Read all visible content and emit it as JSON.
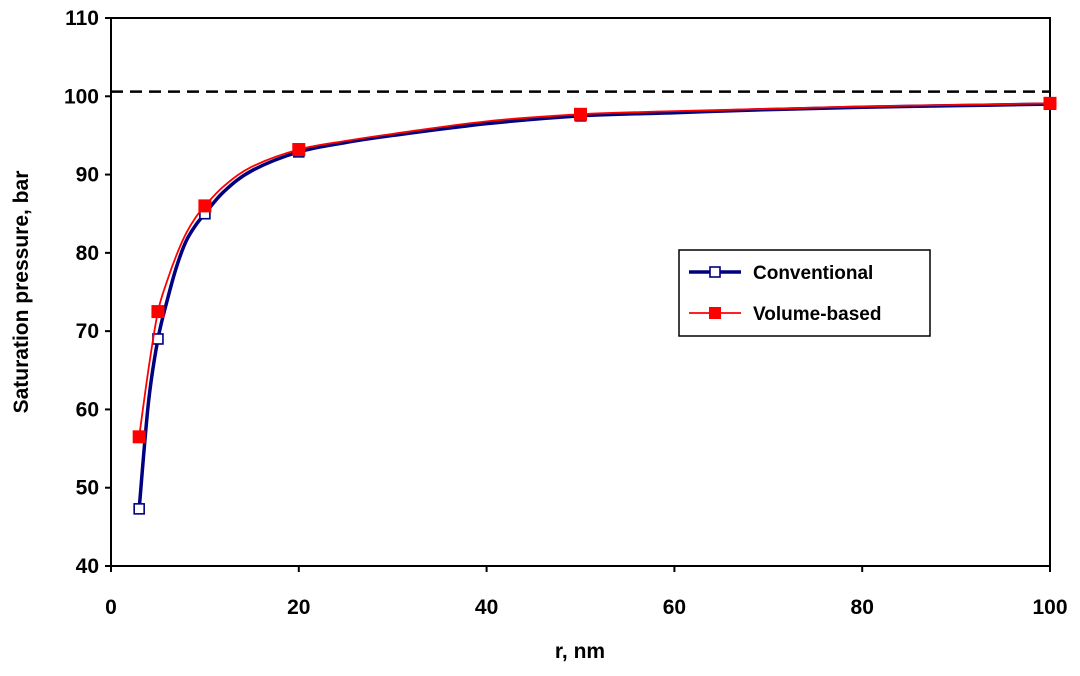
{
  "chart_data": {
    "type": "line",
    "title": "",
    "xlabel": "r, nm",
    "ylabel": "Saturation pressure, bar",
    "xlim": [
      0,
      100
    ],
    "ylim": [
      40,
      110
    ],
    "xticks": [
      0,
      20,
      40,
      60,
      80,
      100
    ],
    "yticks": [
      40,
      50,
      60,
      70,
      80,
      90,
      100,
      110
    ],
    "grid": false,
    "legend_position": "right-center",
    "reference_line": {
      "y": 100.6,
      "style": "dashed",
      "color": "#000000"
    },
    "series": [
      {
        "name": "Conventional",
        "color": "#000080",
        "marker": "hollow-square",
        "markers_x": [
          3,
          5,
          10,
          20,
          50,
          100
        ],
        "markers_y": [
          47.3,
          69.0,
          85.0,
          92.9,
          97.5,
          99.0
        ],
        "x": [
          3,
          4,
          5,
          6,
          7,
          8,
          9,
          10,
          12,
          15,
          20,
          25,
          30,
          40,
          50,
          60,
          70,
          80,
          90,
          100
        ],
        "y": [
          47.3,
          61.0,
          69.0,
          74.0,
          78.3,
          81.5,
          83.5,
          85.0,
          87.8,
          90.5,
          92.9,
          94.1,
          95.0,
          96.5,
          97.5,
          97.9,
          98.3,
          98.6,
          98.8,
          99.0
        ]
      },
      {
        "name": "Volume-based",
        "color": "#ff0000",
        "marker": "filled-square",
        "markers_x": [
          3,
          5,
          10,
          20,
          50,
          100
        ],
        "markers_y": [
          56.5,
          72.5,
          86.0,
          93.2,
          97.7,
          99.1
        ],
        "x": [
          3,
          4,
          5,
          6,
          7,
          8,
          9,
          10,
          12,
          15,
          20,
          25,
          30,
          40,
          50,
          60,
          70,
          80,
          90,
          100
        ],
        "y": [
          56.5,
          65.2,
          72.5,
          76.5,
          79.8,
          82.5,
          84.5,
          86.0,
          88.5,
          91.0,
          93.2,
          94.3,
          95.2,
          96.8,
          97.7,
          98.1,
          98.4,
          98.7,
          98.9,
          99.1
        ]
      }
    ]
  }
}
